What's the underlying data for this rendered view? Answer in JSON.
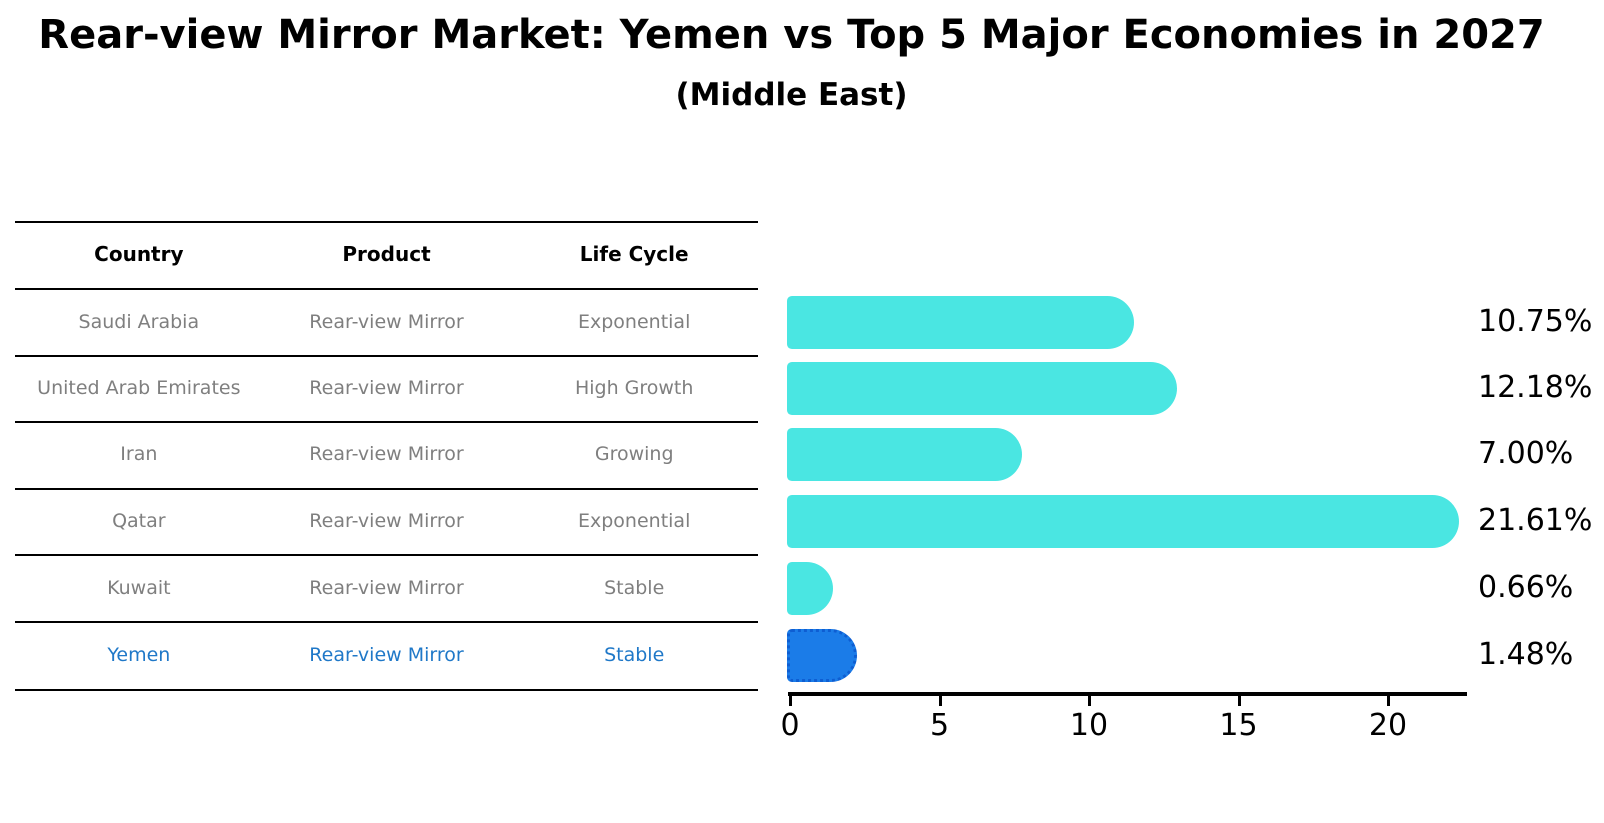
{
  "title": "Rear-view Mirror Market: Yemen vs Top 5 Major Economies in 2027",
  "subtitle": "(Middle East)",
  "table": {
    "headers": [
      "Country",
      "Product",
      "Life Cycle"
    ],
    "rows": [
      {
        "country": "Saudi Arabia",
        "product": "Rear-view Mirror",
        "life_cycle": "Exponential",
        "highlight": false
      },
      {
        "country": "United Arab Emirates",
        "product": "Rear-view Mirror",
        "life_cycle": "High Growth",
        "highlight": false
      },
      {
        "country": "Iran",
        "product": "Rear-view Mirror",
        "life_cycle": "Growing",
        "highlight": false
      },
      {
        "country": "Qatar",
        "product": "Rear-view Mirror",
        "life_cycle": "Exponential",
        "highlight": false
      },
      {
        "country": "Kuwait",
        "product": "Rear-view Mirror",
        "life_cycle": "Stable",
        "highlight": false
      },
      {
        "country": "Yemen",
        "product": "Rear-view Mirror",
        "life_cycle": "Stable",
        "highlight": true
      }
    ]
  },
  "chart_data": {
    "type": "bar",
    "orientation": "horizontal",
    "categories": [
      "Saudi Arabia",
      "United Arab Emirates",
      "Iran",
      "Qatar",
      "Kuwait",
      "Yemen"
    ],
    "values": [
      10.75,
      12.18,
      7.0,
      21.61,
      0.66,
      1.48
    ],
    "value_labels": [
      "10.75%",
      "12.18%",
      "7.00%",
      "21.61%",
      "0.66%",
      "1.48%"
    ],
    "xticks": [
      0,
      5,
      10,
      15,
      20
    ],
    "xlim": [
      0,
      22.7
    ],
    "grid": false,
    "legend": false,
    "highlight_category": "Yemen",
    "bar_color": "#4AE6E2",
    "highlight_color": "#1B7CE8",
    "highlight_border_color": "#0E5ED2"
  },
  "colors": {
    "bar": "#4AE6E2",
    "highlight_bar": "#1B7CE8",
    "highlight_border": "#0E5ED2",
    "highlight_text": "#1F78C8",
    "table_text": "#7F7F7F",
    "axis": "#000000"
  }
}
